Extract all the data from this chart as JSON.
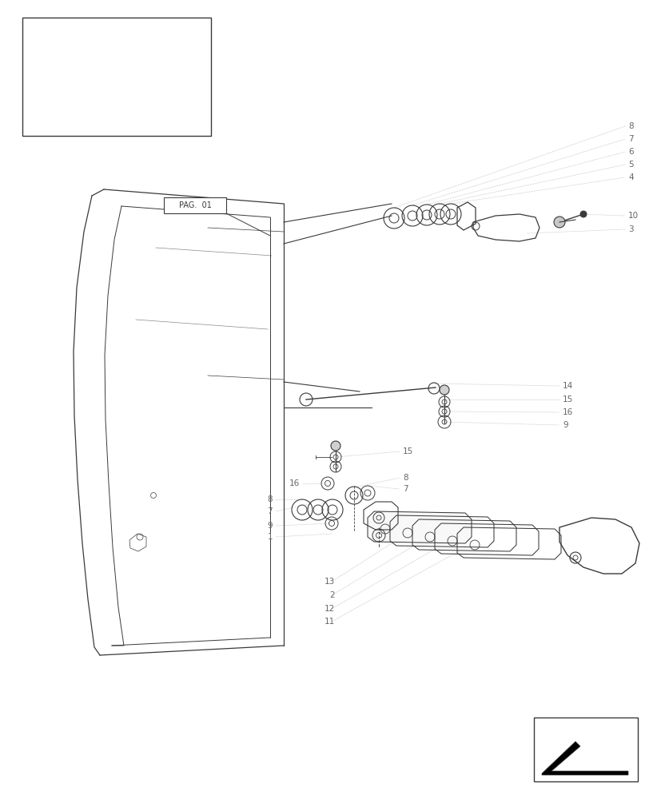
{
  "bg_color": "#ffffff",
  "line_color": "#3a3a3a",
  "light_line_color": "#aaaaaa",
  "label_color": "#666666",
  "figsize": [
    8.28,
    10.0
  ],
  "dpi": 100
}
